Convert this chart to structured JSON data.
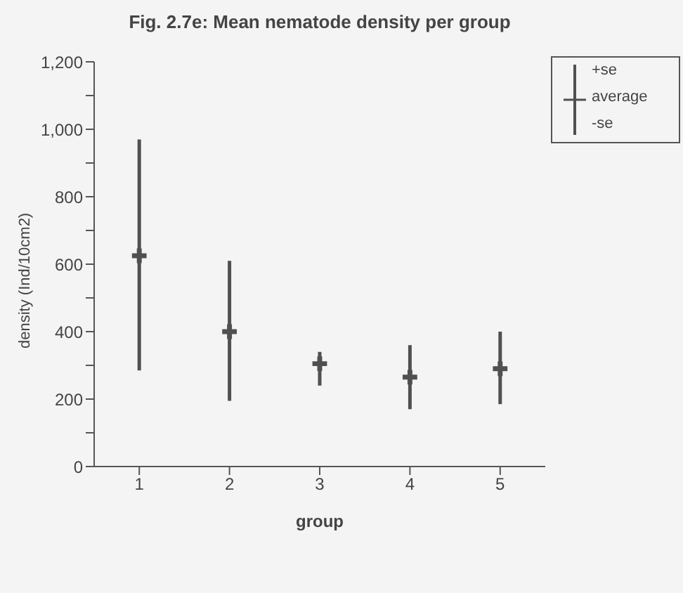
{
  "chart_data": {
    "type": "scatter",
    "title": "Fig. 2.7e: Mean nematode density per group",
    "xlabel": "group",
    "ylabel": "density (Ind/10cm2)",
    "x": [
      1,
      2,
      3,
      4,
      5
    ],
    "series": [
      {
        "name": "average",
        "color": "#505050",
        "values": [
          625,
          400,
          305,
          265,
          290
        ],
        "errors": [
          [
            285,
            970
          ],
          [
            195,
            610
          ],
          [
            240,
            340
          ],
          [
            170,
            360
          ],
          [
            185,
            400
          ]
        ]
      }
    ],
    "annotations": [
      "+se",
      "-se"
    ],
    "xlim": [
      0.5,
      5.5
    ],
    "xticks": [
      1,
      2,
      3,
      4,
      5
    ],
    "ylim": [
      0,
      1200
    ],
    "yticks": [
      0,
      {
        "value": 100,
        "label": null
      },
      200,
      {
        "value": 300,
        "label": null
      },
      400,
      {
        "value": 500,
        "label": null
      },
      600,
      {
        "value": 700,
        "label": null
      },
      800,
      {
        "value": 900,
        "label": null
      },
      {
        "value": 1000,
        "label": "1,000"
      },
      {
        "value": 1100,
        "label": null
      },
      {
        "value": 1200,
        "label": "1,200"
      }
    ],
    "marker": "cross",
    "grid": false,
    "legend": "top right"
  }
}
